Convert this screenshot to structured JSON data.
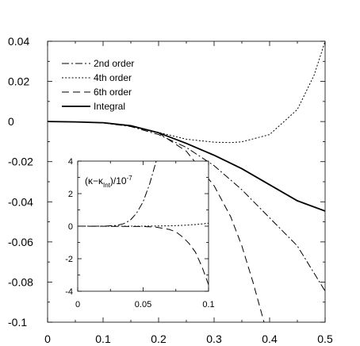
{
  "chart_data": [
    {
      "type": "line",
      "title": "",
      "xlabel": "",
      "ylabel": "",
      "xlim": [
        0,
        0.5
      ],
      "ylim": [
        -0.1,
        0.04
      ],
      "x_ticks": [
        "0",
        "0.1",
        "0.2",
        "0.3",
        "0.4",
        "0.5"
      ],
      "y_ticks": [
        "0.04",
        "0.02",
        "0",
        "-0.02",
        "-0.04",
        "-0.06",
        "-0.08",
        "-0.1"
      ],
      "grid": false,
      "legend_position": "top-left",
      "series": [
        {
          "name": "2nd order",
          "dash": "dash-dot",
          "x": [
            0,
            0.05,
            0.1,
            0.15,
            0.2,
            0.25,
            0.3,
            0.35,
            0.4,
            0.45,
            0.5
          ],
          "y": [
            0,
            -0.0002,
            -0.0007,
            -0.0025,
            -0.0065,
            -0.0129,
            -0.022,
            -0.034,
            -0.048,
            -0.062,
            -0.0845
          ]
        },
        {
          "name": "4th order",
          "dash": "dotted",
          "x": [
            0,
            0.05,
            0.1,
            0.15,
            0.2,
            0.25,
            0.3,
            0.33,
            0.35,
            0.4,
            0.45,
            0.48,
            0.5
          ],
          "y": [
            0,
            -0.0002,
            -0.0006,
            -0.0021,
            -0.0054,
            -0.0088,
            -0.0103,
            -0.0105,
            -0.0101,
            -0.0065,
            0.006,
            0.023,
            0.04
          ]
        },
        {
          "name": "6th order",
          "dash": "dashed",
          "x": [
            0,
            0.05,
            0.1,
            0.15,
            0.2,
            0.25,
            0.3,
            0.33,
            0.35,
            0.37,
            0.39
          ],
          "y": [
            0,
            -0.0002,
            -0.0006,
            -0.0021,
            -0.0057,
            -0.0148,
            -0.032,
            -0.0475,
            -0.062,
            -0.08,
            -0.1
          ]
        },
        {
          "name": "Integral",
          "dash": "solid",
          "x": [
            0,
            0.05,
            0.1,
            0.15,
            0.2,
            0.25,
            0.3,
            0.35,
            0.4,
            0.45,
            0.5
          ],
          "y": [
            0,
            -0.0002,
            -0.0006,
            -0.0021,
            -0.0056,
            -0.0109,
            -0.0168,
            -0.0235,
            -0.0315,
            -0.0395,
            -0.0446
          ]
        }
      ]
    },
    {
      "type": "line",
      "title": "",
      "ylabel_parts": {
        "open": "(",
        "kappa1": "κ",
        "minus": "−",
        "kappa2": "κ",
        "sub": "Int",
        "close": ")/10",
        "sup": "-7"
      },
      "xlim": [
        0,
        0.1
      ],
      "ylim": [
        -4,
        4
      ],
      "x_ticks": [
        "0",
        "0.05",
        "0.1"
      ],
      "y_ticks": [
        "4",
        "2",
        "0",
        "-2",
        "-4"
      ],
      "grid": false,
      "series": [
        {
          "dash": "dash-dot",
          "x": [
            0,
            0.02,
            0.03,
            0.035,
            0.04,
            0.045,
            0.05,
            0.055,
            0.06
          ],
          "y": [
            0,
            0,
            0.05,
            0.15,
            0.35,
            0.8,
            1.5,
            2.6,
            4.0
          ]
        },
        {
          "dash": "dotted",
          "x": [
            0,
            0.05,
            0.07,
            0.08,
            0.09,
            0.1
          ],
          "y": [
            0,
            0,
            0.02,
            0.05,
            0.1,
            0.18
          ]
        },
        {
          "dash": "dashed",
          "x": [
            0,
            0.05,
            0.06,
            0.07,
            0.075,
            0.08,
            0.085,
            0.09,
            0.095,
            0.1
          ],
          "y": [
            0,
            -0.02,
            -0.06,
            -0.2,
            -0.35,
            -0.65,
            -1.05,
            -1.6,
            -2.5,
            -3.6
          ]
        }
      ]
    }
  ]
}
